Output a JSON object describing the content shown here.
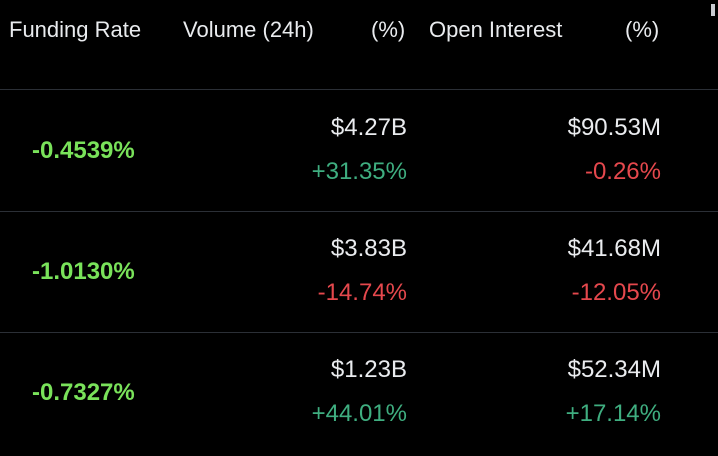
{
  "header": {
    "funding_rate": "Funding Rate",
    "volume": "Volume (24h)",
    "volume_pct": "(%)",
    "open_interest": "Open Interest",
    "oi_pct": "(%)"
  },
  "colors": {
    "funding": "#79e25a",
    "positive": "#3fae80",
    "negative": "#e5484d",
    "background": "#000000"
  },
  "rows": [
    {
      "funding_rate": "-0.4539%",
      "volume": "$4.27B",
      "volume_change": "+31.35%",
      "volume_trend": "up",
      "open_interest": "$90.53M",
      "oi_change": "-0.26%",
      "oi_trend": "down"
    },
    {
      "funding_rate": "-1.0130%",
      "volume": "$3.83B",
      "volume_change": "-14.74%",
      "volume_trend": "down",
      "open_interest": "$41.68M",
      "oi_change": "-12.05%",
      "oi_trend": "down"
    },
    {
      "funding_rate": "-0.7327%",
      "volume": "$1.23B",
      "volume_change": "+44.01%",
      "volume_trend": "up",
      "open_interest": "$52.34M",
      "oi_change": "+17.14%",
      "oi_trend": "up"
    }
  ]
}
